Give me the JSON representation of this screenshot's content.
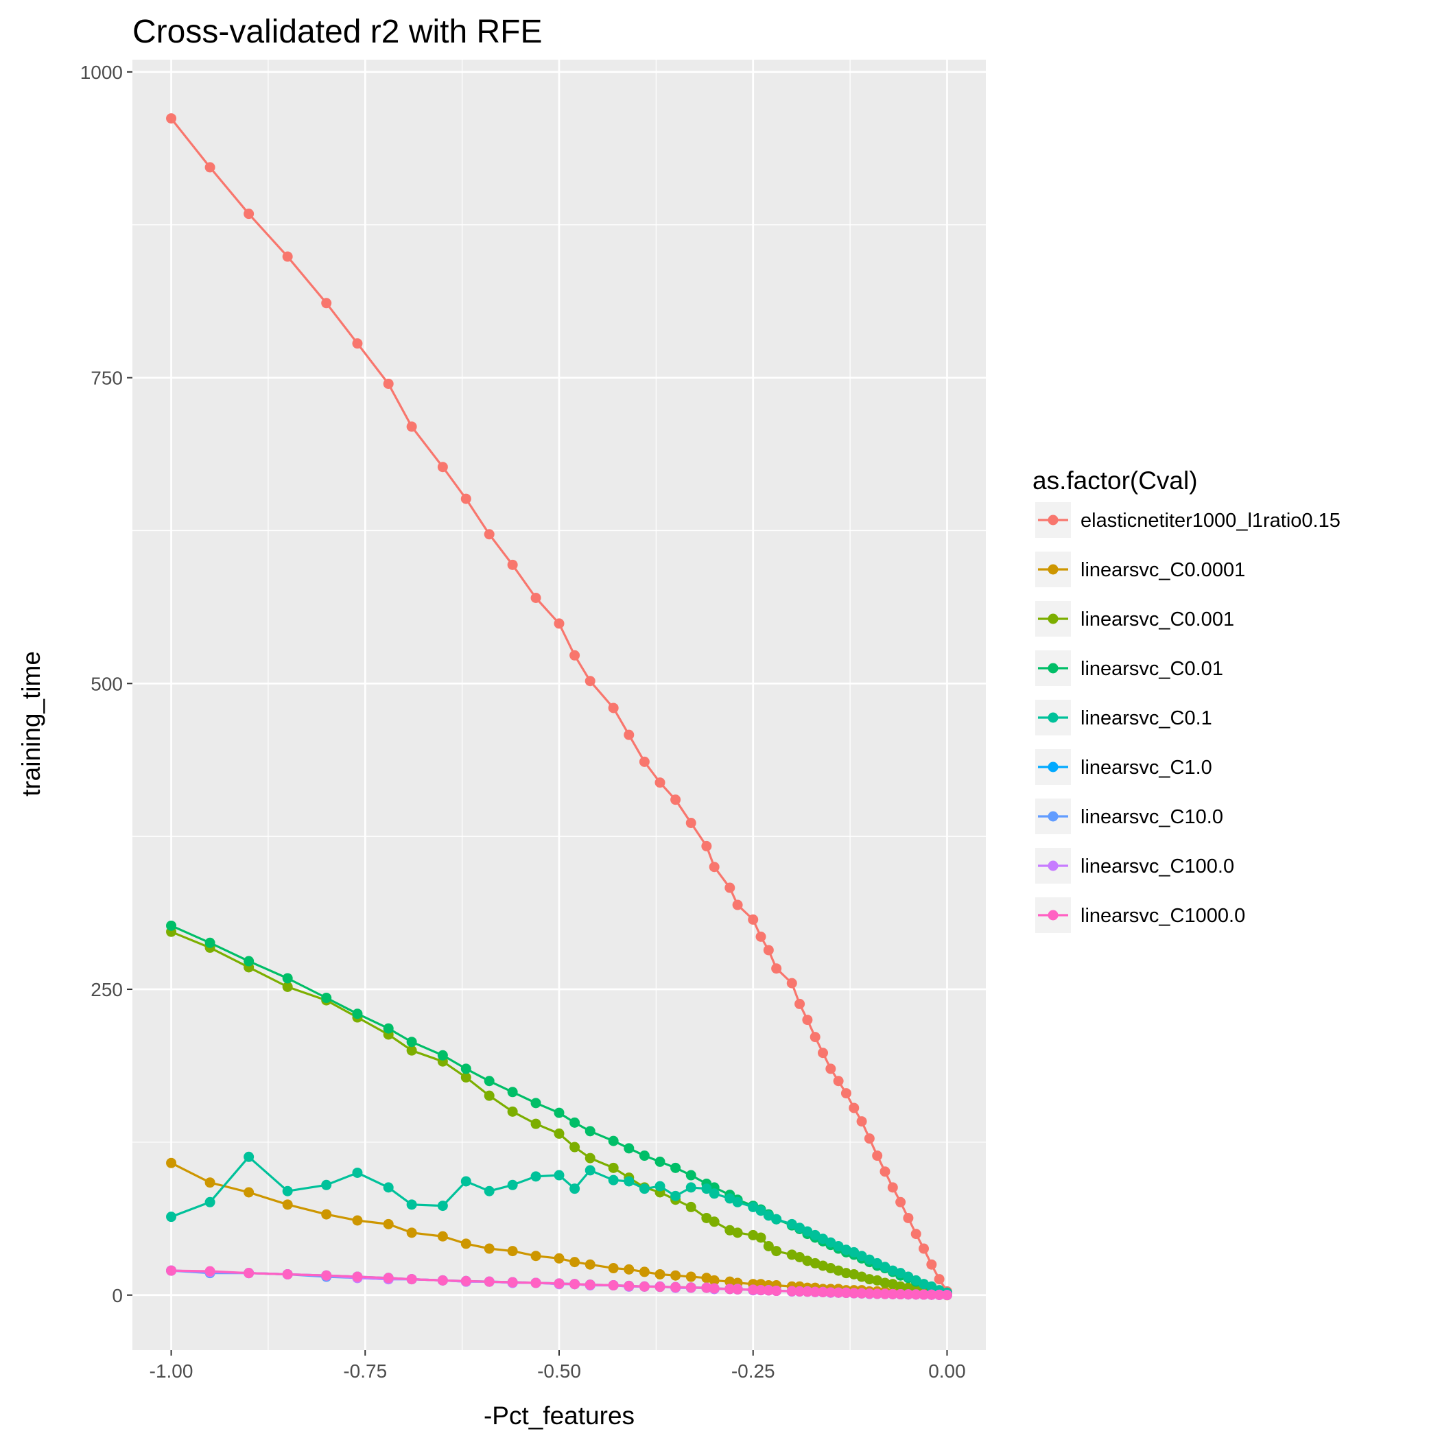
{
  "chart_data": {
    "type": "line",
    "title": "Cross-validated r2 with RFE",
    "xlabel": "-Pct_features",
    "ylabel": "training_time",
    "xlim": [
      -1.05,
      0.05
    ],
    "ylim": [
      -45,
      1010
    ],
    "x_ticks": [
      -1.0,
      -0.75,
      -0.5,
      -0.25,
      0.0
    ],
    "x_tick_labels": [
      "-1.00",
      "-0.75",
      "-0.50",
      "-0.25",
      "0.00"
    ],
    "y_ticks": [
      0,
      250,
      500,
      750,
      1000
    ],
    "y_tick_labels": [
      "0",
      "250",
      "500",
      "750",
      "1000"
    ],
    "grid": true,
    "legend": {
      "title": "as.factor(Cval)",
      "position": "right"
    },
    "series": [
      {
        "name": "elasticnetiter1000_l1ratio0.15",
        "color": "#F8766D",
        "x": [
          -1.0,
          -0.95,
          -0.9,
          -0.85,
          -0.8,
          -0.76,
          -0.72,
          -0.69,
          -0.65,
          -0.62,
          -0.59,
          -0.56,
          -0.53,
          -0.5,
          -0.48,
          -0.46,
          -0.43,
          -0.41,
          -0.39,
          -0.37,
          -0.35,
          -0.33,
          -0.31,
          -0.3,
          -0.28,
          -0.27,
          -0.25,
          -0.24,
          -0.23,
          -0.22,
          -0.2,
          -0.19,
          -0.18,
          -0.17,
          -0.16,
          -0.15,
          -0.14,
          -0.13,
          -0.12,
          -0.11,
          -0.1,
          -0.09,
          -0.08,
          -0.07,
          -0.06,
          -0.05,
          -0.04,
          -0.03,
          -0.02,
          -0.01,
          0.0
        ],
        "y": [
          962,
          922,
          884,
          849,
          811,
          778,
          745,
          710,
          677,
          651,
          622,
          597,
          570,
          549,
          523,
          502,
          480,
          458,
          436,
          419,
          405,
          386,
          367,
          350,
          333,
          319,
          307,
          293,
          282,
          267,
          255,
          238,
          225,
          211,
          198,
          185,
          175,
          165,
          153,
          142,
          128,
          114,
          101,
          88,
          76,
          63,
          50,
          38,
          25,
          13,
          3
        ]
      },
      {
        "name": "linearsvc_C0.0001",
        "color": "#CD9600",
        "x": [
          -1.0,
          -0.95,
          -0.9,
          -0.85,
          -0.8,
          -0.76,
          -0.72,
          -0.69,
          -0.65,
          -0.62,
          -0.59,
          -0.56,
          -0.53,
          -0.5,
          -0.48,
          -0.46,
          -0.43,
          -0.41,
          -0.39,
          -0.37,
          -0.35,
          -0.33,
          -0.31,
          -0.3,
          -0.28,
          -0.27,
          -0.25,
          -0.24,
          -0.23,
          -0.22,
          -0.2,
          -0.19,
          -0.18,
          -0.17,
          -0.16,
          -0.15,
          -0.14,
          -0.13,
          -0.12,
          -0.11,
          -0.1,
          -0.09,
          -0.08,
          -0.07,
          -0.06,
          -0.05,
          -0.04,
          -0.03,
          -0.02,
          -0.01,
          0.0
        ],
        "y": [
          108,
          92,
          84,
          74,
          66,
          61,
          58,
          51,
          48,
          42,
          38,
          36,
          32,
          30,
          27,
          25,
          22,
          21,
          19,
          17,
          16,
          15,
          14,
          12,
          11,
          10,
          9,
          9,
          8,
          8,
          7,
          7,
          6,
          6,
          5,
          5,
          5,
          4,
          4,
          4,
          3,
          3,
          3,
          2,
          2,
          2,
          1,
          1,
          1,
          1,
          0
        ]
      },
      {
        "name": "linearsvc_C0.001",
        "color": "#7CAE00",
        "x": [
          -1.0,
          -0.95,
          -0.9,
          -0.85,
          -0.8,
          -0.76,
          -0.72,
          -0.69,
          -0.65,
          -0.62,
          -0.59,
          -0.56,
          -0.53,
          -0.5,
          -0.48,
          -0.46,
          -0.43,
          -0.41,
          -0.39,
          -0.37,
          -0.35,
          -0.33,
          -0.31,
          -0.3,
          -0.28,
          -0.27,
          -0.25,
          -0.24,
          -0.23,
          -0.22,
          -0.2,
          -0.19,
          -0.18,
          -0.17,
          -0.16,
          -0.15,
          -0.14,
          -0.13,
          -0.12,
          -0.11,
          -0.1,
          -0.09,
          -0.08,
          -0.07,
          -0.06,
          -0.05,
          -0.04,
          -0.03,
          -0.02,
          -0.01,
          0.0
        ],
        "y": [
          297,
          284,
          268,
          252,
          241,
          227,
          213,
          200,
          191,
          178,
          163,
          150,
          140,
          132,
          121,
          112,
          104,
          96,
          88,
          84,
          78,
          72,
          63,
          60,
          53,
          51,
          49,
          47,
          40,
          36,
          33,
          31,
          28,
          26,
          24,
          22,
          20,
          18,
          17,
          15,
          13,
          12,
          10,
          9,
          7,
          6,
          5,
          4,
          3,
          2,
          1
        ]
      },
      {
        "name": "linearsvc_C0.01",
        "color": "#00BE67",
        "x": [
          -1.0,
          -0.95,
          -0.9,
          -0.85,
          -0.8,
          -0.76,
          -0.72,
          -0.69,
          -0.65,
          -0.62,
          -0.59,
          -0.56,
          -0.53,
          -0.5,
          -0.48,
          -0.46,
          -0.43,
          -0.41,
          -0.39,
          -0.37,
          -0.35,
          -0.33,
          -0.31,
          -0.3,
          -0.28,
          -0.27,
          -0.25,
          -0.24,
          -0.23,
          -0.22,
          -0.2,
          -0.19,
          -0.18,
          -0.17,
          -0.16,
          -0.15,
          -0.14,
          -0.13,
          -0.12,
          -0.11,
          -0.1,
          -0.09,
          -0.08,
          -0.07,
          -0.06,
          -0.05,
          -0.04,
          -0.03,
          -0.02,
          -0.01,
          0.0
        ],
        "y": [
          302,
          288,
          273,
          259,
          243,
          230,
          218,
          207,
          196,
          185,
          175,
          166,
          157,
          149,
          141,
          134,
          126,
          120,
          114,
          109,
          104,
          98,
          91,
          88,
          82,
          78,
          73,
          70,
          66,
          62,
          57,
          54,
          50,
          47,
          44,
          41,
          38,
          35,
          33,
          30,
          27,
          24,
          22,
          19,
          16,
          14,
          11,
          9,
          6,
          3,
          1
        ]
      },
      {
        "name": "linearsvc_C0.1",
        "color": "#00BFC4",
        "x": [
          -1.0,
          -0.95,
          -0.9,
          -0.85,
          -0.8,
          -0.76,
          -0.72,
          -0.69,
          -0.65,
          -0.62,
          -0.59,
          -0.56,
          -0.53,
          -0.5,
          -0.48,
          -0.46,
          -0.43,
          -0.41,
          -0.39,
          -0.37,
          -0.35,
          -0.33,
          -0.31,
          -0.3,
          -0.28,
          -0.27,
          -0.25,
          -0.24,
          -0.23,
          -0.22,
          -0.2,
          -0.19,
          -0.18,
          -0.17,
          -0.16,
          -0.15,
          -0.14,
          -0.13,
          -0.12,
          -0.11,
          -0.1,
          -0.09,
          -0.08,
          -0.07,
          -0.06,
          -0.05,
          -0.04,
          -0.03,
          -0.02,
          -0.01,
          0.0
        ],
        "y": [
          64,
          76,
          113,
          85,
          90,
          100,
          88,
          74,
          73,
          93,
          85,
          90,
          97,
          98,
          87,
          102,
          94,
          93,
          87,
          89,
          81,
          88,
          87,
          83,
          79,
          76,
          72,
          69,
          65,
          62,
          58,
          55,
          52,
          49,
          46,
          43,
          40,
          37,
          35,
          32,
          29,
          26,
          23,
          20,
          18,
          15,
          12,
          9,
          7,
          4,
          2
        ],
        "color_line": "#00C19A"
      },
      {
        "name": "linearsvc_C1.0",
        "color": "#00A9FF",
        "x": [
          -1.0,
          -0.95,
          -0.9,
          -0.85,
          -0.8,
          -0.76,
          -0.72,
          -0.69,
          -0.65,
          -0.62,
          -0.59,
          -0.56,
          -0.53,
          -0.5,
          -0.48,
          -0.46,
          -0.43,
          -0.41,
          -0.39,
          -0.37,
          -0.35,
          -0.33,
          -0.31,
          -0.3,
          -0.28,
          -0.27,
          -0.25,
          -0.24,
          -0.23,
          -0.22,
          -0.2,
          -0.19,
          -0.18,
          -0.17,
          -0.16,
          -0.15,
          -0.14,
          -0.13,
          -0.12,
          -0.11,
          -0.1,
          -0.09,
          -0.08,
          -0.07,
          -0.06,
          -0.05,
          -0.04,
          -0.03,
          -0.02,
          -0.01,
          0.0
        ],
        "y": [
          20,
          19,
          18,
          17,
          16,
          15,
          14,
          13,
          12,
          11.5,
          11,
          10.5,
          10,
          9.5,
          9,
          8.5,
          8,
          7.5,
          7,
          6.8,
          6.5,
          6.2,
          6,
          5.5,
          5,
          4.7,
          4.4,
          4.1,
          3.8,
          3.5,
          3.2,
          3,
          2.8,
          2.6,
          2.4,
          2.2,
          2,
          1.8,
          1.6,
          1.4,
          1.2,
          1,
          0.9,
          0.8,
          0.7,
          0.6,
          0.5,
          0.4,
          0.3,
          0.2,
          0.1
        ]
      },
      {
        "name": "linearsvc_C10.0",
        "color": "#619CFF",
        "x": [
          -1.0,
          -0.95,
          -0.9,
          -0.85,
          -0.8,
          -0.76,
          -0.72,
          -0.69,
          -0.65,
          -0.62,
          -0.59,
          -0.56,
          -0.53,
          -0.5,
          -0.48,
          -0.46,
          -0.43,
          -0.41,
          -0.39,
          -0.37,
          -0.35,
          -0.33,
          -0.31,
          -0.3,
          -0.28,
          -0.27,
          -0.25,
          -0.24,
          -0.23,
          -0.22,
          -0.2,
          -0.19,
          -0.18,
          -0.17,
          -0.16,
          -0.15,
          -0.14,
          -0.13,
          -0.12,
          -0.11,
          -0.1,
          -0.09,
          -0.08,
          -0.07,
          -0.06,
          -0.05,
          -0.04,
          -0.03,
          -0.02,
          -0.01,
          0.0
        ],
        "y": [
          20,
          18,
          18,
          17,
          15,
          14,
          13,
          13,
          12,
          11,
          11,
          10,
          10,
          9,
          9,
          8,
          8,
          7,
          7,
          7,
          6,
          6,
          6,
          5,
          5,
          5,
          4,
          4,
          4,
          3.5,
          3,
          3,
          3,
          2.5,
          2.5,
          2,
          2,
          2,
          1.5,
          1.5,
          1,
          1,
          1,
          0.8,
          0.7,
          0.6,
          0.5,
          0.4,
          0.3,
          0.2,
          0.1
        ]
      },
      {
        "name": "linearsvc_C100.0",
        "color": "#C77CFF",
        "x": [
          -1.0,
          -0.95,
          -0.9,
          -0.85,
          -0.8,
          -0.76,
          -0.72,
          -0.69,
          -0.65,
          -0.62,
          -0.59,
          -0.56,
          -0.53,
          -0.5,
          -0.48,
          -0.46,
          -0.43,
          -0.41,
          -0.39,
          -0.37,
          -0.35,
          -0.33,
          -0.31,
          -0.3,
          -0.28,
          -0.27,
          -0.25,
          -0.24,
          -0.23,
          -0.22,
          -0.2,
          -0.19,
          -0.18,
          -0.17,
          -0.16,
          -0.15,
          -0.14,
          -0.13,
          -0.12,
          -0.11,
          -0.1,
          -0.09,
          -0.08,
          -0.07,
          -0.06,
          -0.05,
          -0.04,
          -0.03,
          -0.02,
          -0.01,
          0.0
        ],
        "y": [
          20,
          19,
          18,
          17,
          16,
          14,
          13,
          13,
          12,
          11,
          11,
          10,
          10,
          9,
          9,
          8,
          8,
          7,
          7,
          7,
          6,
          6,
          6,
          5,
          5,
          5,
          4,
          4,
          4,
          3.5,
          3,
          3,
          3,
          2.5,
          2.5,
          2,
          2,
          2,
          1.5,
          1.5,
          1,
          1,
          1,
          0.8,
          0.7,
          0.6,
          0.5,
          0.4,
          0.3,
          0.2,
          0.1
        ]
      },
      {
        "name": "linearsvc_C1000.0",
        "color": "#FF61C3",
        "x": [
          -1.0,
          -0.95,
          -0.9,
          -0.85,
          -0.8,
          -0.76,
          -0.72,
          -0.69,
          -0.65,
          -0.62,
          -0.59,
          -0.56,
          -0.53,
          -0.5,
          -0.48,
          -0.46,
          -0.43,
          -0.41,
          -0.39,
          -0.37,
          -0.35,
          -0.33,
          -0.31,
          -0.3,
          -0.28,
          -0.27,
          -0.25,
          -0.24,
          -0.23,
          -0.22,
          -0.2,
          -0.19,
          -0.18,
          -0.17,
          -0.16,
          -0.15,
          -0.14,
          -0.13,
          -0.12,
          -0.11,
          -0.1,
          -0.09,
          -0.08,
          -0.07,
          -0.06,
          -0.05,
          -0.04,
          -0.03,
          -0.02,
          -0.01,
          0.0
        ],
        "y": [
          20,
          19.5,
          18,
          17,
          16,
          15,
          14,
          13,
          12,
          11.5,
          11,
          10.5,
          10,
          9.5,
          9,
          8.5,
          8,
          7.5,
          7,
          6.8,
          6.5,
          6.2,
          6,
          5.5,
          5,
          4.7,
          4.4,
          4.1,
          3.8,
          3.5,
          3.2,
          3,
          2.8,
          2.6,
          2.4,
          2.2,
          2,
          1.8,
          1.6,
          1.4,
          1.2,
          1,
          0.9,
          0.8,
          0.7,
          0.6,
          0.5,
          0.4,
          0.3,
          0.2,
          0.1
        ]
      }
    ]
  }
}
